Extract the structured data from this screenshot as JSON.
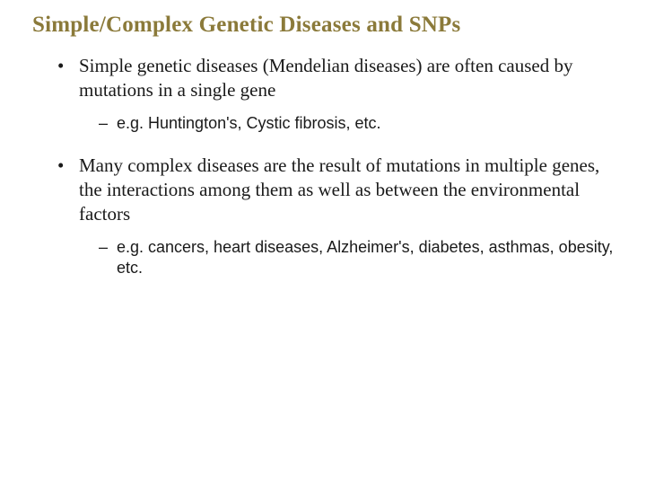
{
  "slide": {
    "title_color": "#8b7a3a",
    "text_color": "#1a1a1a",
    "background_color": "#ffffff",
    "title": "Simple/Complex Genetic Diseases and SNPs",
    "bullets": [
      {
        "text": "Simple genetic diseases (Mendelian diseases) are often caused by mutations in a single gene",
        "sub": [
          {
            "text": "e.g. Huntington's, Cystic fibrosis, etc."
          }
        ]
      },
      {
        "text": "Many complex diseases are the result of mutations in multiple genes, the interactions among them as well as between the environmental factors",
        "sub": [
          {
            "text": "e.g. cancers, heart diseases, Alzheimer's, diabetes, asthmas, obesity, etc."
          }
        ]
      }
    ]
  }
}
